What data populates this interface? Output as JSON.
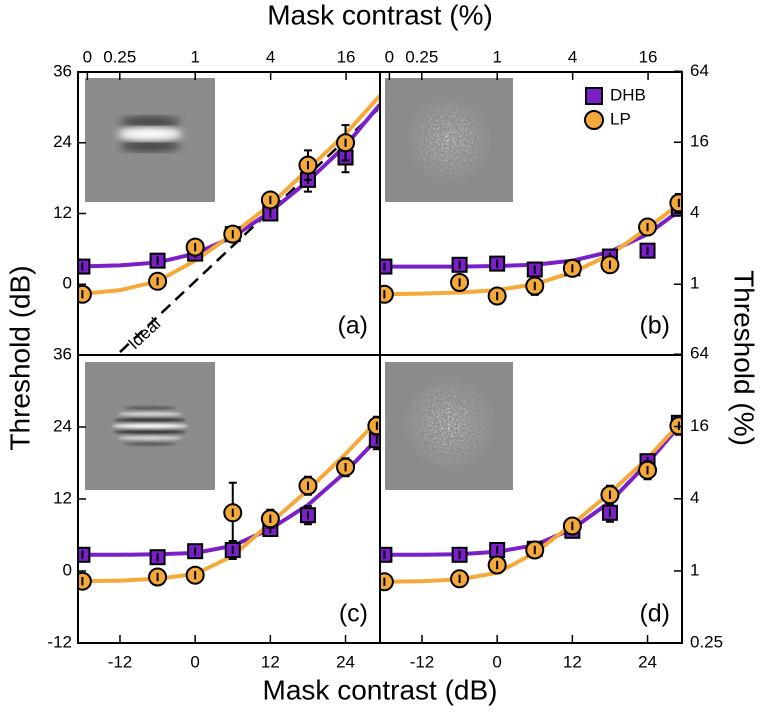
{
  "figure": {
    "xlabel_top": "Mask contrast (%)",
    "xlabel": "Mask contrast (dB)",
    "ylabel": "Threshold (dB)",
    "y2label": "Threshold (%)"
  },
  "chart_data": [
    {
      "type": "scatter",
      "label": "(a)",
      "xlim": [
        -18.7,
        29.5
      ],
      "ylim": [
        -12,
        36
      ],
      "yticks": [
        0,
        12,
        24,
        36
      ],
      "x2lim": [
        0.116,
        29.85
      ],
      "x2scale": "log",
      "x2ticks": [
        {
          "value": 0,
          "label": "0"
        },
        0.25,
        1,
        4,
        16
      ],
      "fit_x": [
        -18.7,
        -12,
        -6,
        0,
        6,
        12,
        18,
        24,
        29.5
      ],
      "ideal": {
        "label": "Ideal",
        "x": [
          -12,
          29.3
        ],
        "y": [
          -11.5,
          29.8
        ]
      },
      "series": [
        {
          "color": "#7a1fc9",
          "marker": "square",
          "x": [
            -18,
            -6,
            0,
            6,
            12,
            18,
            24
          ],
          "values": [
            3,
            4,
            5.2,
            8.5,
            12,
            17.7,
            21.5
          ],
          "errors": [
            1,
            1,
            1,
            1,
            1,
            2,
            2.5
          ],
          "fit": [
            3,
            3.2,
            3.7,
            5.2,
            8,
            12.3,
            17.5,
            23.5,
            30.5
          ]
        },
        {
          "color": "#f4a93a",
          "marker": "circle",
          "x": [
            -18,
            -6,
            0,
            6,
            12,
            18,
            24
          ],
          "values": [
            -1.7,
            0.5,
            6.3,
            8.5,
            14.3,
            20.2,
            24
          ],
          "errors": [
            1,
            1,
            1,
            1,
            1,
            2.5,
            3
          ],
          "fit": [
            -1.7,
            -1,
            0.5,
            4,
            8.5,
            13.5,
            19.5,
            25.5,
            32
          ]
        }
      ]
    },
    {
      "type": "scatter",
      "label": "(b)",
      "xlim": [
        -18.7,
        29.5
      ],
      "ylim": [
        -12,
        36
      ],
      "y2lim": [
        0.251,
        63.1
      ],
      "y2scale": "log",
      "y2ticks": [
        1,
        4,
        16,
        64
      ],
      "x2lim": [
        0.116,
        29.85
      ],
      "x2scale": "log",
      "x2ticks": [
        {
          "value": 0,
          "label": "0"
        },
        0.25,
        1,
        4,
        16
      ],
      "legend": "upper right",
      "fit_x": [
        -18.7,
        -12,
        -6,
        0,
        6,
        12,
        18,
        24,
        29.5
      ],
      "series": [
        {
          "name": "DHB",
          "color": "#7a1fc9",
          "marker": "square",
          "x": [
            -18,
            -6,
            0,
            6,
            12,
            18,
            24,
            29
          ],
          "values": [
            3,
            3.3,
            3.5,
            2.5,
            2.7,
            4.7,
            5.7,
            12.8
          ],
          "errors": [
            1,
            1,
            1,
            1,
            1,
            1,
            1,
            1
          ],
          "fit": [
            3,
            3,
            3,
            3.1,
            3.3,
            4,
            5.5,
            8.5,
            12.8
          ]
        },
        {
          "name": "LP",
          "color": "#f4a93a",
          "marker": "circle",
          "x": [
            -18,
            -6,
            0,
            6,
            12,
            18,
            24,
            29
          ],
          "values": [
            -1.7,
            0.3,
            -2,
            -0.3,
            2.7,
            3.3,
            9.7,
            13.8
          ],
          "errors": [
            1,
            1,
            1,
            1.5,
            1,
            1,
            1,
            1.5
          ],
          "fit": [
            -1.7,
            -1.6,
            -1.4,
            -1,
            0,
            2,
            5,
            9.5,
            14
          ]
        }
      ]
    },
    {
      "type": "scatter",
      "label": "(c)",
      "xlim": [
        -18.7,
        29.5
      ],
      "ylim": [
        -12,
        36
      ],
      "yticks": [
        -12,
        0,
        12,
        24,
        36
      ],
      "xticks": [
        -12,
        0,
        12,
        24
      ],
      "fit_x": [
        -18.7,
        -12,
        -6,
        0,
        6,
        12,
        18,
        24,
        29.5
      ],
      "series": [
        {
          "color": "#7a1fc9",
          "marker": "square",
          "x": [
            -18,
            -6,
            0,
            6,
            12,
            18,
            29
          ],
          "values": [
            2.7,
            2.3,
            3.3,
            3.5,
            7,
            9.3,
            21.8
          ],
          "errors": [
            1,
            1,
            1,
            1.5,
            1,
            1.5,
            1.5
          ],
          "fit": [
            2.7,
            2.7,
            2.8,
            3,
            4.2,
            7,
            11,
            16.5,
            22.5
          ]
        },
        {
          "color": "#f4a93a",
          "marker": "circle",
          "x": [
            -18,
            -6,
            0,
            6,
            12,
            18,
            24,
            29
          ],
          "values": [
            -1.7,
            -1,
            -0.7,
            9.7,
            8.7,
            14.2,
            17.3,
            24.2
          ],
          "errors": [
            1,
            1,
            1,
            5,
            1.5,
            1.5,
            1.5,
            1.5
          ],
          "fit": [
            -1.7,
            -1.6,
            -1.3,
            -0.5,
            2.5,
            8,
            13.5,
            19.5,
            25.5
          ]
        }
      ]
    },
    {
      "type": "scatter",
      "label": "(d)",
      "xlim": [
        -18.7,
        29.5
      ],
      "ylim": [
        -12,
        36
      ],
      "y2lim": [
        0.251,
        63.1
      ],
      "y2scale": "log",
      "y2ticks": [
        0.25,
        1,
        4,
        16,
        64
      ],
      "xticks": [
        -12,
        0,
        12,
        24
      ],
      "fit_x": [
        -18.7,
        -12,
        -6,
        0,
        6,
        12,
        18,
        24,
        29.5
      ],
      "series": [
        {
          "color": "#7a1fc9",
          "marker": "square",
          "x": [
            -18,
            -6,
            0,
            6,
            12,
            18,
            24,
            29
          ],
          "values": [
            2.7,
            2.7,
            3.5,
            3.7,
            6.7,
            9.7,
            18.3,
            24.7
          ],
          "errors": [
            1,
            1,
            1,
            1,
            1,
            1.5,
            1,
            1
          ],
          "fit": [
            2.7,
            2.7,
            2.8,
            3.2,
            4.3,
            7,
            11.5,
            18,
            24.7
          ]
        },
        {
          "color": "#f4a93a",
          "marker": "circle",
          "x": [
            -18,
            -6,
            0,
            6,
            12,
            18,
            24,
            29
          ],
          "values": [
            -1.8,
            -1.3,
            1,
            3.5,
            7.5,
            12.7,
            16.8,
            24.2
          ],
          "errors": [
            1,
            1,
            1,
            1,
            1,
            1.5,
            1.5,
            1.5
          ],
          "fit": [
            -1.8,
            -1.7,
            -1.4,
            -0.3,
            3,
            7.8,
            13,
            18.8,
            25
          ]
        }
      ]
    }
  ]
}
